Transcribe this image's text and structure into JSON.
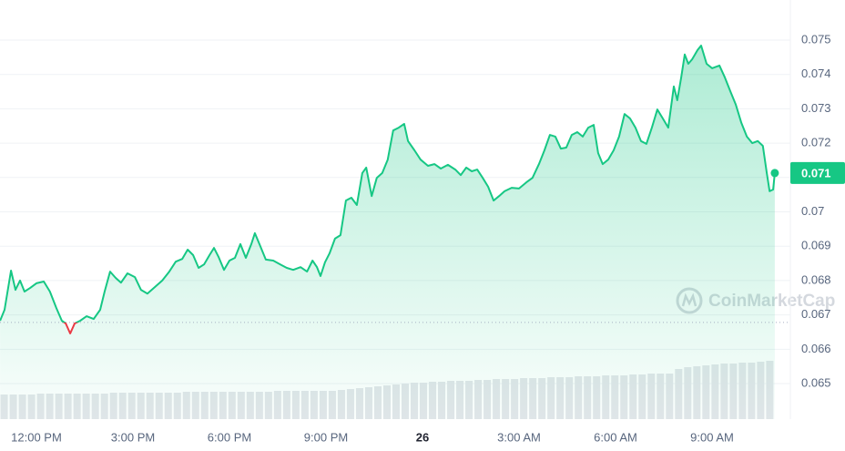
{
  "chart_data": {
    "type": "line",
    "x": [
      -1.13,
      -0.99,
      -0.79,
      -0.65,
      -0.51,
      -0.37,
      -0.2,
      0,
      0.23,
      0.42,
      0.62,
      0.79,
      0.91,
      1.05,
      1.19,
      1.36,
      1.56,
      1.78,
      1.98,
      2.12,
      2.29,
      2.46,
      2.63,
      2.83,
      3.06,
      3.25,
      3.45,
      3.68,
      3.91,
      4.13,
      4.33,
      4.53,
      4.7,
      4.87,
      5.04,
      5.21,
      5.38,
      5.52,
      5.66,
      5.83,
      6.0,
      6.17,
      6.34,
      6.51,
      6.68,
      6.79,
      6.96,
      7.13,
      7.36,
      7.58,
      7.78,
      7.98,
      8.21,
      8.41,
      8.58,
      8.72,
      8.83,
      8.97,
      9.11,
      9.28,
      9.45,
      9.62,
      9.79,
      9.96,
      10.13,
      10.25,
      10.42,
      10.58,
      10.75,
      10.92,
      11.09,
      11.26,
      11.43,
      11.55,
      11.75,
      11.94,
      12.17,
      12.37,
      12.57,
      12.79,
      13.02,
      13.19,
      13.36,
      13.53,
      13.7,
      13.87,
      14.04,
      14.21,
      14.38,
      14.55,
      14.77,
      15.0,
      15.23,
      15.42,
      15.62,
      15.79,
      15.96,
      16.13,
      16.3,
      16.47,
      16.64,
      16.81,
      16.98,
      17.15,
      17.32,
      17.46,
      17.6,
      17.77,
      17.94,
      18.11,
      18.28,
      18.45,
      18.62,
      18.79,
      18.96,
      19.13,
      19.3,
      19.47,
      19.64,
      19.81,
      19.92,
      20.04,
      20.15,
      20.26,
      20.38,
      20.55,
      20.66,
      20.83,
      21.0,
      21.23,
      21.4,
      21.57,
      21.74,
      21.91,
      22.08,
      22.25,
      22.42,
      22.58,
      22.7,
      22.79,
      22.9,
      22.95
    ],
    "series": [
      {
        "color": "#16c784",
        "values": [
          0.06683,
          0.06715,
          0.06829,
          0.06773,
          0.068,
          0.06768,
          0.06778,
          0.06792,
          0.06797,
          0.06768,
          0.0672,
          0.06683,
          0.06675,
          0.06646,
          0.06675,
          0.06683,
          0.06696,
          0.06688,
          0.06715,
          0.06768,
          0.06826,
          0.06808,
          0.06794,
          0.06821,
          0.0681,
          0.06773,
          0.06762,
          0.06781,
          0.068,
          0.06826,
          0.06855,
          0.06863,
          0.0689,
          0.06874,
          0.06837,
          0.06847,
          0.06874,
          0.06895,
          0.06869,
          0.06831,
          0.06858,
          0.06866,
          0.06906,
          0.06866,
          0.06906,
          0.06938,
          0.069,
          0.06861,
          0.06858,
          0.06847,
          0.06837,
          0.06831,
          0.06839,
          0.06826,
          0.06858,
          0.06839,
          0.06813,
          0.06853,
          0.06879,
          0.06922,
          0.06932,
          0.07033,
          0.07041,
          0.0702,
          0.07113,
          0.07129,
          0.07046,
          0.07099,
          0.07113,
          0.07152,
          0.07237,
          0.07245,
          0.07256,
          0.07206,
          0.07179,
          0.07152,
          0.07134,
          0.07139,
          0.07126,
          0.07137,
          0.07123,
          0.07107,
          0.07129,
          0.07118,
          0.07123,
          0.07099,
          0.07073,
          0.07033,
          0.07046,
          0.0706,
          0.0707,
          0.07068,
          0.07086,
          0.07099,
          0.07139,
          0.07179,
          0.07224,
          0.07219,
          0.07184,
          0.07187,
          0.07224,
          0.07232,
          0.07219,
          0.07245,
          0.07253,
          0.07171,
          0.07139,
          0.07152,
          0.07179,
          0.07219,
          0.07285,
          0.07272,
          0.07245,
          0.07206,
          0.07198,
          0.07245,
          0.07298,
          0.07272,
          0.07245,
          0.07365,
          0.07325,
          0.07391,
          0.07458,
          0.07431,
          0.07444,
          0.07471,
          0.07484,
          0.07431,
          0.07418,
          0.07426,
          0.07391,
          0.07351,
          0.07312,
          0.07259,
          0.07219,
          0.072,
          0.07206,
          0.07192,
          0.07113,
          0.0706,
          0.07065,
          0.07113
        ]
      }
    ],
    "down_color": "#ea3943",
    "baseline": 0.06678,
    "last_price_label": "0.071",
    "volume": {
      "color": "#e3e6ea",
      "ylim": [
        0,
        100
      ],
      "values": [
        27,
        27,
        27,
        27,
        28,
        28,
        28,
        28,
        28,
        28,
        28,
        28,
        29,
        29,
        29,
        29,
        29,
        29,
        29,
        29,
        30,
        30,
        30,
        30,
        30,
        30,
        30,
        30,
        30,
        30,
        31,
        31,
        31,
        31,
        31,
        31,
        31,
        32,
        33,
        34,
        35,
        36,
        37,
        38,
        39,
        40,
        40,
        41,
        41,
        42,
        42,
        42,
        43,
        43,
        44,
        44,
        44,
        45,
        45,
        45,
        46,
        46,
        46,
        47,
        47,
        47,
        48,
        48,
        48,
        49,
        49,
        50,
        50,
        50,
        55,
        57,
        58,
        59,
        60,
        61,
        61,
        62,
        62,
        63,
        64
      ]
    },
    "xlim": [
      -1.132,
      23.434
    ],
    "xticks": [
      {
        "value": 0,
        "label": "12:00 PM"
      },
      {
        "value": 3,
        "label": "3:00 PM"
      },
      {
        "value": 6,
        "label": "6:00 PM"
      },
      {
        "value": 9,
        "label": "9:00 PM"
      },
      {
        "value": 12,
        "label": "26"
      },
      {
        "value": 15,
        "label": "3:00 AM"
      },
      {
        "value": 18,
        "label": "6:00 AM"
      },
      {
        "value": 21,
        "label": "9:00 AM"
      }
    ],
    "ylim": [
      0.063966,
      0.076167
    ],
    "yticks": [
      0.065,
      0.066,
      0.067,
      0.068,
      0.069,
      0.07,
      0.071,
      0.072,
      0.073,
      0.074,
      0.075
    ],
    "grid": true,
    "watermark": "CoinMarketCap"
  }
}
